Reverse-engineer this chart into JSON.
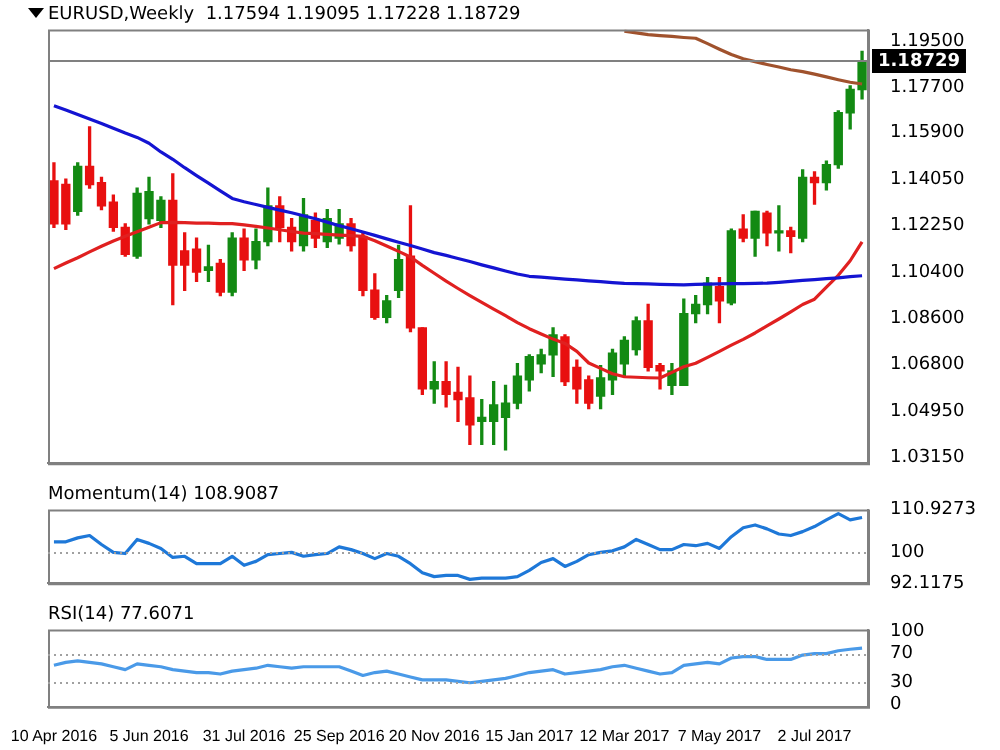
{
  "chart_data": [
    {
      "type": "candlestick",
      "title": "EURUSD,Weekly  1.17594 1.19095 1.17228 1.18729",
      "tick_labels": "y",
      "ohlc": [
        [
          1.14,
          1.1471,
          1.1217,
          1.1231
        ],
        [
          1.1386,
          1.1407,
          1.121,
          1.1231
        ],
        [
          1.128,
          1.1471,
          1.1266,
          1.1457
        ],
        [
          1.1457,
          1.1612,
          1.1372,
          1.1386
        ],
        [
          1.1393,
          1.1414,
          1.1287,
          1.1302
        ],
        [
          1.1316,
          1.1344,
          1.1203,
          1.1217
        ],
        [
          1.1217,
          1.1231,
          1.1104,
          1.1111
        ],
        [
          1.1104,
          1.1372,
          1.1097,
          1.1351
        ],
        [
          1.1252,
          1.1414,
          1.1231,
          1.1358
        ],
        [
          1.1245,
          1.1337,
          1.1217,
          1.1323
        ],
        [
          1.1323,
          1.1428,
          1.0914,
          1.1069
        ],
        [
          1.1125,
          1.1196,
          1.097,
          1.1069
        ],
        [
          1.1132,
          1.1175,
          1.1005,
          1.1041
        ],
        [
          1.1048,
          1.1146,
          1.1005,
          1.1062
        ],
        [
          1.1076,
          1.109,
          1.0949,
          1.0963
        ],
        [
          1.0963,
          1.1196,
          1.0949,
          1.1175
        ],
        [
          1.1175,
          1.121,
          1.1048,
          1.109
        ],
        [
          1.109,
          1.121,
          1.1055,
          1.1161
        ],
        [
          1.1161,
          1.1372,
          1.1146,
          1.1302
        ],
        [
          1.1302,
          1.1337,
          1.1161,
          1.1217
        ],
        [
          1.1217,
          1.1252,
          1.1125,
          1.1161
        ],
        [
          1.1146,
          1.133,
          1.1125,
          1.1266
        ],
        [
          1.1245,
          1.1273,
          1.1139,
          1.1175
        ],
        [
          1.1161,
          1.1287,
          1.1139,
          1.1252
        ],
        [
          1.1175,
          1.1287,
          1.1153,
          1.1231
        ],
        [
          1.1231,
          1.1252,
          1.1125,
          1.1146
        ],
        [
          1.1182,
          1.1196,
          1.0949,
          1.097
        ],
        [
          1.097,
          1.1034,
          1.0857,
          1.0864
        ],
        [
          1.0864,
          1.0949,
          1.0843,
          1.0928
        ],
        [
          1.097,
          1.1146,
          1.0942,
          1.109
        ],
        [
          1.1104,
          1.1302,
          1.0808,
          1.0822
        ],
        [
          1.0822,
          1.0822,
          1.0561,
          1.0582
        ],
        [
          1.0582,
          1.0688,
          1.0526,
          1.0611
        ],
        [
          1.0611,
          1.0688,
          1.0512,
          1.0561
        ],
        [
          1.0568,
          1.0667,
          1.0455,
          1.054
        ],
        [
          1.0547,
          1.0632,
          1.0364,
          1.0441
        ],
        [
          1.0455,
          1.054,
          1.0364,
          1.047
        ],
        [
          1.0455,
          1.0611,
          1.0364,
          1.0519
        ],
        [
          1.047,
          1.0596,
          1.0343,
          1.0526
        ],
        [
          1.0526,
          1.0681,
          1.0505,
          1.0632
        ],
        [
          1.0618,
          1.0716,
          1.0575,
          1.0709
        ],
        [
          1.0681,
          1.0737,
          1.0646,
          1.0716
        ],
        [
          1.0716,
          1.0822,
          1.0632,
          1.0794
        ],
        [
          1.0787,
          1.0794,
          1.0596,
          1.0611
        ],
        [
          1.0667,
          1.0695,
          1.0526,
          1.0582
        ],
        [
          1.0618,
          1.0632,
          1.0505,
          1.0526
        ],
        [
          1.0554,
          1.0674,
          1.0505,
          1.0625
        ],
        [
          1.0618,
          1.0737,
          1.0561,
          1.0723
        ],
        [
          1.0681,
          1.0787,
          1.0632,
          1.0773
        ],
        [
          1.0737,
          1.0864,
          1.0716,
          1.085
        ],
        [
          1.085,
          1.0914,
          1.0653,
          1.0667
        ],
        [
          1.0674,
          1.0681,
          1.0582,
          1.0653
        ],
        [
          1.0596,
          1.0681,
          1.0561,
          1.0653
        ],
        [
          1.0596,
          1.0935,
          1.0596,
          1.0878
        ],
        [
          1.0878,
          1.0949,
          1.0843,
          1.0914
        ],
        [
          1.0914,
          1.102,
          1.0878,
          1.0998
        ],
        [
          1.0984,
          1.102,
          1.0843,
          1.0928
        ],
        [
          1.0921,
          1.121,
          1.0914,
          1.1203
        ],
        [
          1.121,
          1.1266,
          1.1161,
          1.1175
        ],
        [
          1.1175,
          1.128,
          1.1104,
          1.128
        ],
        [
          1.1273,
          1.128,
          1.1146,
          1.1196
        ],
        [
          1.1196,
          1.1302,
          1.1125,
          1.1203
        ],
        [
          1.1203,
          1.1217,
          1.1118,
          1.1182
        ],
        [
          1.1175,
          1.1443,
          1.1161,
          1.1414
        ],
        [
          1.1414,
          1.1435,
          1.1309,
          1.1393
        ],
        [
          1.1393,
          1.1478,
          1.1365,
          1.1464
        ],
        [
          1.1464,
          1.1675,
          1.145,
          1.1668
        ],
        [
          1.1668,
          1.1774,
          1.1605,
          1.176
        ],
        [
          1.17594,
          1.19095,
          1.17228,
          1.18729
        ]
      ],
      "colors": [
        "#e81010",
        "#e81010",
        "#138a13",
        "#e81010",
        "#e81010",
        "#e81010",
        "#e81010",
        "#138a13",
        "#138a13",
        "#138a13",
        "#e81010",
        "#e81010",
        "#e81010",
        "#138a13",
        "#e81010",
        "#138a13",
        "#e81010",
        "#138a13",
        "#138a13",
        "#e81010",
        "#e81010",
        "#138a13",
        "#e81010",
        "#138a13",
        "#138a13",
        "#e81010",
        "#e81010",
        "#e81010",
        "#138a13",
        "#138a13",
        "#e81010",
        "#e81010",
        "#138a13",
        "#e81010",
        "#e81010",
        "#e81010",
        "#138a13",
        "#138a13",
        "#138a13",
        "#138a13",
        "#138a13",
        "#138a13",
        "#138a13",
        "#e81010",
        "#e81010",
        "#e81010",
        "#138a13",
        "#138a13",
        "#138a13",
        "#138a13",
        "#e81010",
        "#e81010",
        "#138a13",
        "#138a13",
        "#138a13",
        "#138a13",
        "#e81010",
        "#138a13",
        "#e81010",
        "#138a13",
        "#e81010",
        "#138a13",
        "#e81010",
        "#138a13",
        "#e81010",
        "#138a13",
        "#138a13",
        "#138a13",
        "#138a13"
      ],
      "series": [
        {
          "type": "line",
          "color": "#1414d2",
          "values": [
            1.1696,
            1.1679,
            1.1661,
            1.1643,
            1.1626,
            1.1607,
            1.1588,
            1.1571,
            1.1548,
            1.1514,
            1.1485,
            1.1452,
            1.1421,
            1.1391,
            1.1361,
            1.1331,
            1.1318,
            1.1307,
            1.1296,
            1.1285,
            1.1275,
            1.1263,
            1.1251,
            1.1238,
            1.1224,
            1.1212,
            1.1199,
            1.1186,
            1.1172,
            1.1159,
            1.1146,
            1.1132,
            1.1118,
            1.1107,
            1.1095,
            1.1083,
            1.107,
            1.1058,
            1.1046,
            1.1034,
            1.1025,
            1.1022,
            1.1018,
            1.1014,
            1.1011,
            1.1007,
            1.1004,
            1.1,
            1.0997,
            1.0996,
            1.0995,
            1.0993,
            1.0992,
            1.0991,
            1.0993,
            1.0994,
            1.0995,
            1.0996,
            1.0996,
            1.0997,
            1.0998,
            1.1001,
            1.1005,
            1.1009,
            1.1012,
            1.1016,
            1.1019,
            1.1024,
            1.1027
          ]
        },
        {
          "type": "line",
          "color": "#e02020",
          "values": [
            1.1055,
            1.1077,
            1.1098,
            1.1121,
            1.1143,
            1.1164,
            1.1182,
            1.12,
            1.1218,
            1.1236,
            1.1237,
            1.1236,
            1.1234,
            1.1234,
            1.1232,
            1.1232,
            1.1227,
            1.1221,
            1.1215,
            1.1208,
            1.1201,
            1.1195,
            1.1193,
            1.119,
            1.1187,
            1.1185,
            1.1182,
            1.1165,
            1.1144,
            1.1123,
            1.1101,
            1.1068,
            1.1037,
            1.1006,
            1.0977,
            1.0949,
            1.0922,
            1.0896,
            1.087,
            1.0843,
            1.0819,
            1.0798,
            1.0778,
            1.0761,
            1.073,
            1.0684,
            1.0663,
            1.0642,
            1.063,
            1.0628,
            1.0626,
            1.0625,
            1.0647,
            1.0669,
            1.0683,
            1.0706,
            1.073,
            1.0754,
            1.0777,
            1.0802,
            1.083,
            1.0857,
            1.0885,
            1.0914,
            1.0935,
            1.0982,
            1.1029,
            1.1086,
            1.116
          ]
        },
        {
          "type": "line",
          "color": "#a0522d",
          "values": [
            null,
            null,
            null,
            null,
            null,
            null,
            null,
            null,
            null,
            null,
            null,
            null,
            null,
            null,
            null,
            null,
            null,
            null,
            null,
            null,
            null,
            null,
            null,
            null,
            null,
            null,
            null,
            null,
            null,
            null,
            null,
            null,
            null,
            null,
            null,
            null,
            null,
            null,
            null,
            null,
            null,
            null,
            null,
            null,
            null,
            null,
            null,
            null,
            1.1989,
            1.1982,
            1.1975,
            1.1971,
            1.1968,
            1.1964,
            1.1961,
            1.194,
            1.1918,
            1.1897,
            1.188,
            1.1869,
            1.1858,
            1.1848,
            1.1837,
            1.183,
            1.182,
            1.1809,
            1.1798,
            1.1788,
            1.1781
          ]
        }
      ],
      "ylim": [
        1.029,
        1.1995
      ],
      "yticks": [
        {
          "value": 1.195,
          "label": "1.19500"
        },
        {
          "value": 1.177,
          "label": "1.17700"
        },
        {
          "value": 1.159,
          "label": "1.15900"
        },
        {
          "value": 1.1405,
          "label": "1.14050"
        },
        {
          "value": 1.1225,
          "label": "1.12250"
        },
        {
          "value": 1.104,
          "label": "1.10400"
        },
        {
          "value": 1.086,
          "label": "1.08600"
        },
        {
          "value": 1.068,
          "label": "1.06800"
        },
        {
          "value": 1.0495,
          "label": "1.04950"
        },
        {
          "value": 1.0315,
          "label": "1.03150"
        }
      ],
      "ref_lines": [
        {
          "axis": "y",
          "value": 1.18729,
          "label": "1.18729",
          "color": "#808080",
          "line_style": "solid"
        }
      ]
    },
    {
      "type": "line",
      "title": "Momentum(14) 108.9087",
      "tick_labels": "y",
      "series": [
        {
          "color": "#1e78d8",
          "values": [
            102.7,
            102.7,
            103.7,
            104.3,
            102.0,
            100.0,
            99.7,
            103.3,
            102.3,
            101.0,
            98.7,
            99.0,
            97.1,
            97.1,
            97.1,
            99.0,
            96.7,
            97.7,
            99.4,
            99.7,
            100.0,
            99.0,
            99.4,
            99.7,
            101.4,
            100.7,
            99.7,
            98.4,
            99.7,
            99.0,
            97.1,
            94.8,
            93.8,
            94.1,
            94.1,
            93.1,
            93.4,
            93.4,
            93.4,
            93.8,
            95.4,
            97.4,
            98.4,
            96.4,
            97.7,
            99.4,
            100.0,
            100.4,
            101.4,
            103.3,
            102.0,
            100.7,
            100.7,
            102.0,
            101.7,
            102.3,
            101.0,
            104.0,
            106.3,
            107.0,
            106.0,
            104.7,
            104.3,
            105.3,
            106.6,
            108.3,
            109.9,
            108.3,
            108.9
          ]
        }
      ],
      "ylim": [
        92.1175,
        110.9273
      ],
      "yticks": [
        92.1175,
        100,
        110.9273
      ],
      "ref_lines": [
        {
          "axis": "y",
          "value": 100,
          "color": "#a0a0a0",
          "line_style": "dotted"
        }
      ]
    },
    {
      "type": "line",
      "title": "RSI(14) 77.6071",
      "categories": [
        "10 Apr 2016",
        null,
        null,
        null,
        null,
        null,
        null,
        null,
        "5 Jun 2016",
        null,
        null,
        null,
        null,
        null,
        null,
        null,
        "31 Jul 2016",
        null,
        null,
        null,
        null,
        null,
        null,
        null,
        "25 Sep 2016",
        null,
        null,
        null,
        null,
        null,
        null,
        null,
        "20 Nov 2016",
        null,
        null,
        null,
        null,
        null,
        null,
        null,
        "15 Jan 2017",
        null,
        null,
        null,
        null,
        null,
        null,
        null,
        "12 Mar 2017",
        null,
        null,
        null,
        null,
        null,
        null,
        null,
        "7 May 2017",
        null,
        null,
        null,
        null,
        null,
        null,
        null,
        "2 Jul 2017",
        null,
        null,
        null,
        null
      ],
      "series": [
        {
          "color": "#4a9ae8",
          "values": [
            54,
            58,
            60,
            58,
            56,
            52,
            48,
            56,
            54,
            52,
            48,
            46,
            44,
            44,
            42,
            46,
            48,
            50,
            54,
            52,
            50,
            52,
            52,
            52,
            52,
            46,
            40,
            44,
            46,
            42,
            38,
            34,
            34,
            34,
            32,
            30,
            32,
            34,
            36,
            40,
            44,
            46,
            48,
            42,
            44,
            46,
            48,
            52,
            54,
            50,
            46,
            42,
            44,
            54,
            56,
            58,
            56,
            64,
            66,
            66,
            62,
            62,
            62,
            68,
            70,
            70,
            74,
            76,
            77.6
          ]
        }
      ],
      "ylim": [
        -3,
        103
      ],
      "yticks": [
        0,
        30,
        70,
        100
      ],
      "ref_lines": [
        {
          "axis": "y",
          "value": 30,
          "color": "#a0a0a0",
          "line_style": "dotted"
        },
        {
          "axis": "y",
          "value": 70,
          "color": "#a0a0a0",
          "line_style": "dotted"
        }
      ]
    }
  ]
}
